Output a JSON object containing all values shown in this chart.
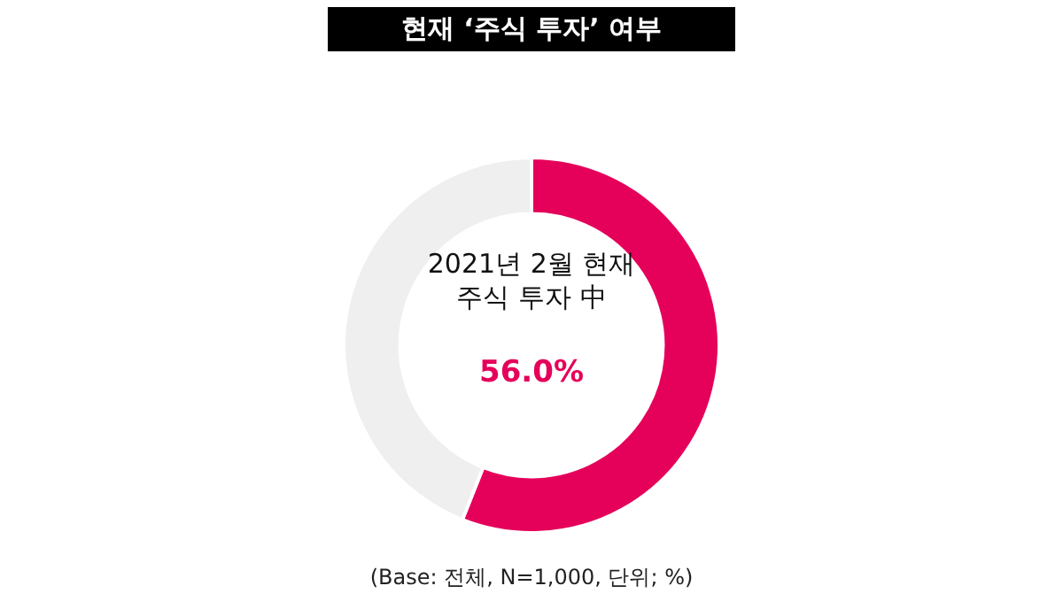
{
  "chart_data": {
    "type": "donut",
    "title": "현재 ‘주식 투자’ 여부",
    "categories": [
      "2021년 2월 현재 주식 투자 中",
      null
    ],
    "values": [
      56.0,
      44.0
    ],
    "colors": [
      "#e5005a",
      "#efefef"
    ],
    "value_labels": [
      "56.0%",
      null
    ],
    "legend": false,
    "annotations": [
      "(Base: 전체, N=1,000, 단위; %)"
    ]
  }
}
